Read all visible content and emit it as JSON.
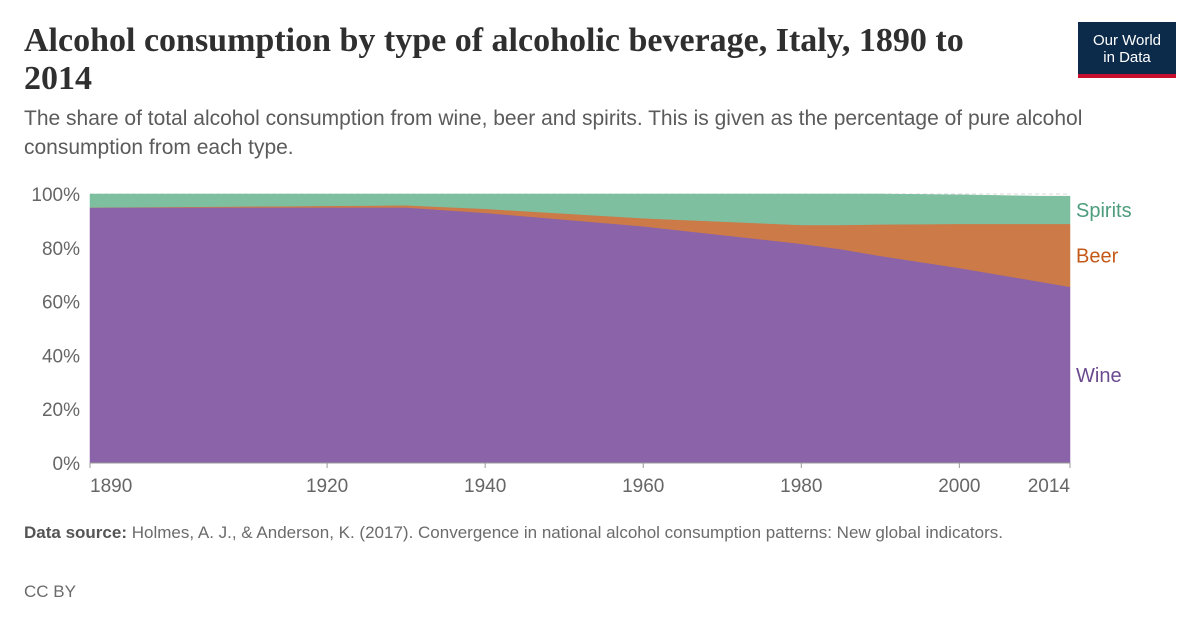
{
  "header": {
    "title": "Alcohol consumption by type of alcoholic beverage, Italy, 1890 to 2014",
    "subtitle": "The share of total alcohol consumption from wine, beer and spirits. This is given as the percentage of pure alcohol consumption from each type."
  },
  "logo": {
    "line1": "Our World",
    "line2": "in Data",
    "bg_color": "#0c2a4a",
    "accent_color": "#c8102e"
  },
  "footer": {
    "source_label": "Data source:",
    "source_text": "Holmes, A. J., & Anderson, K. (2017). Convergence in national alcohol consumption patterns: New global indicators.",
    "license": "CC BY"
  },
  "chart_data": {
    "type": "area",
    "stacked": true,
    "x": [
      1890,
      1920,
      1930,
      1940,
      1960,
      1980,
      1985,
      1990,
      2000,
      2010,
      2014
    ],
    "series": [
      {
        "name": "Wine",
        "color": "#8a63a8",
        "label_color": "#6b4a8f",
        "values": [
          95,
          95,
          95,
          93,
          88,
          81.5,
          79.5,
          77,
          72.5,
          67.5,
          65.5
        ]
      },
      {
        "name": "Beer",
        "color": "#cc7a48",
        "label_color": "#c45a1a",
        "values": [
          0,
          0.6,
          0.8,
          1.5,
          3,
          7,
          9,
          11.7,
          16.4,
          21.4,
          23.4
        ]
      },
      {
        "name": "Spirits",
        "color": "#7dbf9f",
        "label_color": "#4c9c7d",
        "values": [
          5,
          4.4,
          4.2,
          5.5,
          9,
          11.5,
          11.5,
          11.3,
          10.8,
          10.3,
          10.3
        ]
      }
    ],
    "xlim": [
      1890,
      2014
    ],
    "ylim": [
      0,
      100
    ],
    "x_ticks": [
      1890,
      1920,
      1940,
      1960,
      1980,
      2000,
      2014
    ],
    "y_ticks": [
      0,
      20,
      40,
      60,
      80,
      100
    ],
    "y_tick_labels": [
      "0%",
      "20%",
      "40%",
      "60%",
      "80%",
      "100%"
    ],
    "legend": "right-inline",
    "grid": true
  }
}
